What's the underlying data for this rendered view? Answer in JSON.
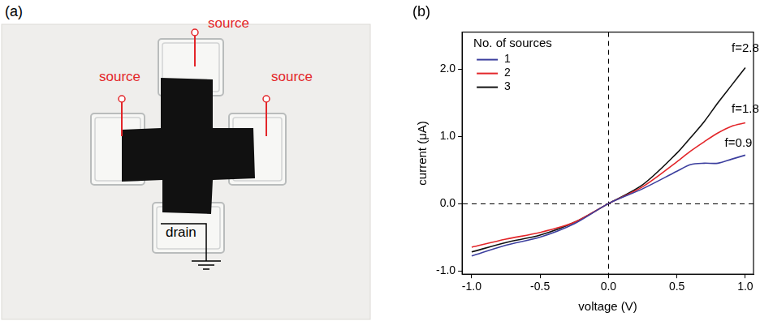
{
  "panel_a": {
    "label": "(a)",
    "sources": [
      "source",
      "source",
      "source"
    ],
    "drain": "drain"
  },
  "chart_data": {
    "type": "line",
    "title": "(b)",
    "x_label": "voltage (V)",
    "y_label": "current (μA)",
    "x": [
      -1.0,
      -0.75,
      -0.5,
      -0.25,
      0.0,
      0.25,
      0.5,
      0.6,
      0.7,
      0.8,
      0.9,
      1.0
    ],
    "series": [
      {
        "name": "1",
        "color": "#3c3f9e",
        "values": [
          -0.78,
          -0.62,
          -0.5,
          -0.3,
          0.0,
          0.22,
          0.48,
          0.58,
          0.6,
          0.6,
          0.66,
          0.72
        ]
      },
      {
        "name": "2",
        "color": "#e3262a",
        "values": [
          -0.65,
          -0.53,
          -0.43,
          -0.28,
          0.0,
          0.25,
          0.62,
          0.78,
          0.92,
          1.05,
          1.15,
          1.2
        ]
      },
      {
        "name": "3",
        "color": "#111111",
        "values": [
          -0.72,
          -0.58,
          -0.47,
          -0.28,
          0.0,
          0.28,
          0.75,
          0.98,
          1.22,
          1.5,
          1.76,
          2.02
        ]
      }
    ],
    "legend": "upper left",
    "legend_title": "No. of sources",
    "annotations": [
      {
        "text": "f=2.8",
        "x": 0.9,
        "y": 2.3
      },
      {
        "text": "f=1.8",
        "x": 0.9,
        "y": 1.4
      },
      {
        "text": "f=0.9",
        "x": 0.85,
        "y": 0.9
      }
    ],
    "xlim": [
      -1.07,
      1.06
    ],
    "xticks": [
      {
        "value": -1,
        "label": "-1.0"
      },
      {
        "value": -0.5,
        "label": "-0.5"
      },
      {
        "value": 0,
        "label": "0.0"
      },
      {
        "value": 0.5,
        "label": "0.5"
      },
      {
        "value": 1,
        "label": "1.0"
      }
    ],
    "ylim": [
      -1.05,
      2.55
    ],
    "yticks": [
      {
        "value": -1,
        "label": "-1.0"
      },
      {
        "value": 0,
        "label": "0.0"
      },
      {
        "value": 1,
        "label": "1.0"
      },
      {
        "value": 2,
        "label": "2.0"
      }
    ]
  }
}
